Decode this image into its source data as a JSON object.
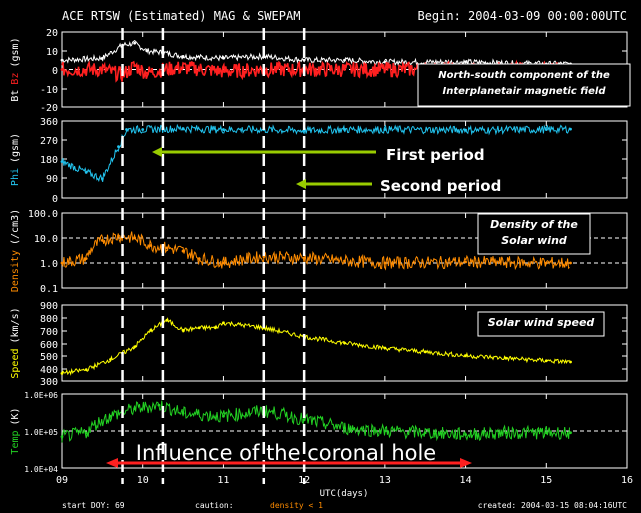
{
  "header": {
    "title": "ACE RTSW (Estimated) MAG & SWEPAM",
    "begin": "Begin: 2004-03-09 00:00:00UTC"
  },
  "footer": {
    "start_doy": "start DOY:  69",
    "caution_label": "caution:",
    "caution_value": "density < 1",
    "created": "created: 2004-03-15 08:04:16UTC"
  },
  "colors": {
    "bt": "#ffffff",
    "bz": "#ff2020",
    "phi": "#22c4ef",
    "density": "#ff8c00",
    "speed": "#ffff00",
    "temp": "#22d022",
    "arrow_period": "#99cc00",
    "arrow_hole": "#ff2020"
  },
  "annotations": {
    "bz_box": [
      "North-south component of the",
      "Interplanetair magnetic field"
    ],
    "first_period": "First period",
    "second_period": "Second period",
    "density_box": [
      "Density of the",
      "Solar wind"
    ],
    "speed_box": "Solar wind speed",
    "coronal_hole": "Influence of the coronal hole"
  },
  "chart_data": {
    "type": "line",
    "xlabel": "UTC(days)",
    "x_ticks": [
      "09",
      "10",
      "11",
      "12",
      "13",
      "14",
      "15",
      "16"
    ],
    "xlim_days": [
      9,
      16
    ],
    "period_markers_days": [
      9.75,
      10.25,
      11.5,
      12.0
    ],
    "panels": [
      {
        "key": "mag",
        "ylabel_parts": [
          "Bt",
          "Bz",
          "(gsm)"
        ],
        "ylim": [
          -20,
          20
        ],
        "yticks": [
          "20",
          "10",
          "0",
          "-10",
          "-20"
        ],
        "series": [
          {
            "name": "Bt",
            "x": [
              9.0,
              9.5,
              9.75,
              9.9,
              10.05,
              10.25,
              10.5,
              11.0,
              11.5,
              12.0,
              12.5,
              13.0,
              14.0,
              15.0,
              15.3
            ],
            "y": [
              5,
              6,
              13,
              14,
              10,
              9,
              7,
              6,
              7,
              5,
              5,
              4,
              4,
              3,
              3
            ]
          },
          {
            "name": "Bz",
            "x": [
              9.0,
              9.5,
              9.75,
              9.9,
              10.05,
              10.25,
              10.5,
              11.0,
              11.5,
              12.0,
              12.5,
              13.0,
              14.0,
              15.0,
              15.3
            ],
            "y": [
              0,
              0,
              -3,
              2,
              -2,
              0,
              1,
              -1,
              0,
              0,
              0,
              0,
              0,
              0,
              0
            ]
          }
        ]
      },
      {
        "key": "phi",
        "ylabel_parts": [
          "Phi",
          "(gsm)"
        ],
        "ylim": [
          0,
          360
        ],
        "yticks": [
          "360",
          "270",
          "180",
          "90",
          "0"
        ],
        "series": [
          {
            "name": "Phi",
            "x": [
              9.0,
              9.3,
              9.5,
              9.7,
              9.8,
              10.0,
              10.5,
              11.0,
              11.5,
              12.0,
              12.5,
              13.0,
              14.0,
              15.0,
              15.3
            ],
            "y": [
              170,
              120,
              90,
              240,
              320,
              320,
              325,
              320,
              320,
              315,
              320,
              320,
              318,
              320,
              322
            ]
          }
        ]
      },
      {
        "key": "density",
        "ylabel_parts": [
          "Density",
          "(/cm3)"
        ],
        "scale": "log",
        "ylim": [
          0.1,
          100
        ],
        "yticks": [
          "100.0",
          "10.0",
          "1.0",
          "0.1"
        ],
        "series": [
          {
            "name": "Density",
            "x": [
              9.0,
              9.3,
              9.5,
              9.7,
              9.9,
              10.1,
              10.3,
              10.5,
              10.7,
              11.0,
              11.5,
              12.0,
              12.5,
              13.0,
              14.0,
              15.0,
              15.3
            ],
            "y": [
              1.0,
              1.5,
              8.0,
              12.0,
              10.0,
              5.0,
              4.0,
              3.0,
              1.5,
              1.0,
              1.8,
              1.6,
              1.2,
              1.0,
              1.1,
              1.0,
              1.0
            ]
          }
        ]
      },
      {
        "key": "speed",
        "ylabel_parts": [
          "Speed",
          "(km/s)"
        ],
        "ylim": [
          300,
          900
        ],
        "yticks": [
          "900",
          "800",
          "700",
          "600",
          "500",
          "400",
          "300"
        ],
        "series": [
          {
            "name": "Speed",
            "x": [
              9.0,
              9.3,
              9.6,
              9.9,
              10.1,
              10.3,
              10.5,
              10.7,
              10.9,
              11.0,
              11.5,
              12.0,
              12.5,
              13.0,
              13.5,
              14.0,
              14.5,
              15.0,
              15.3
            ],
            "y": [
              360,
              390,
              470,
              570,
              700,
              780,
              700,
              720,
              720,
              760,
              720,
              650,
              600,
              560,
              530,
              500,
              480,
              460,
              450
            ]
          }
        ]
      },
      {
        "key": "temp",
        "ylabel_parts": [
          "Temp",
          "(K)"
        ],
        "scale": "log",
        "ylim": [
          10000,
          1000000
        ],
        "yticks": [
          "1.0E+06",
          "1.0E+05",
          "1.0E+04"
        ],
        "series": [
          {
            "name": "Temp",
            "x": [
              9.0,
              9.3,
              9.6,
              9.9,
              10.2,
              10.5,
              11.0,
              11.5,
              12.0,
              12.5,
              13.0,
              13.5,
              14.0,
              14.5,
              15.0,
              15.3
            ],
            "y": [
              70000,
              90000,
              250000,
              400000,
              500000,
              300000,
              250000,
              350000,
              200000,
              120000,
              100000,
              90000,
              80000,
              90000,
              90000,
              90000
            ]
          }
        ]
      }
    ]
  }
}
